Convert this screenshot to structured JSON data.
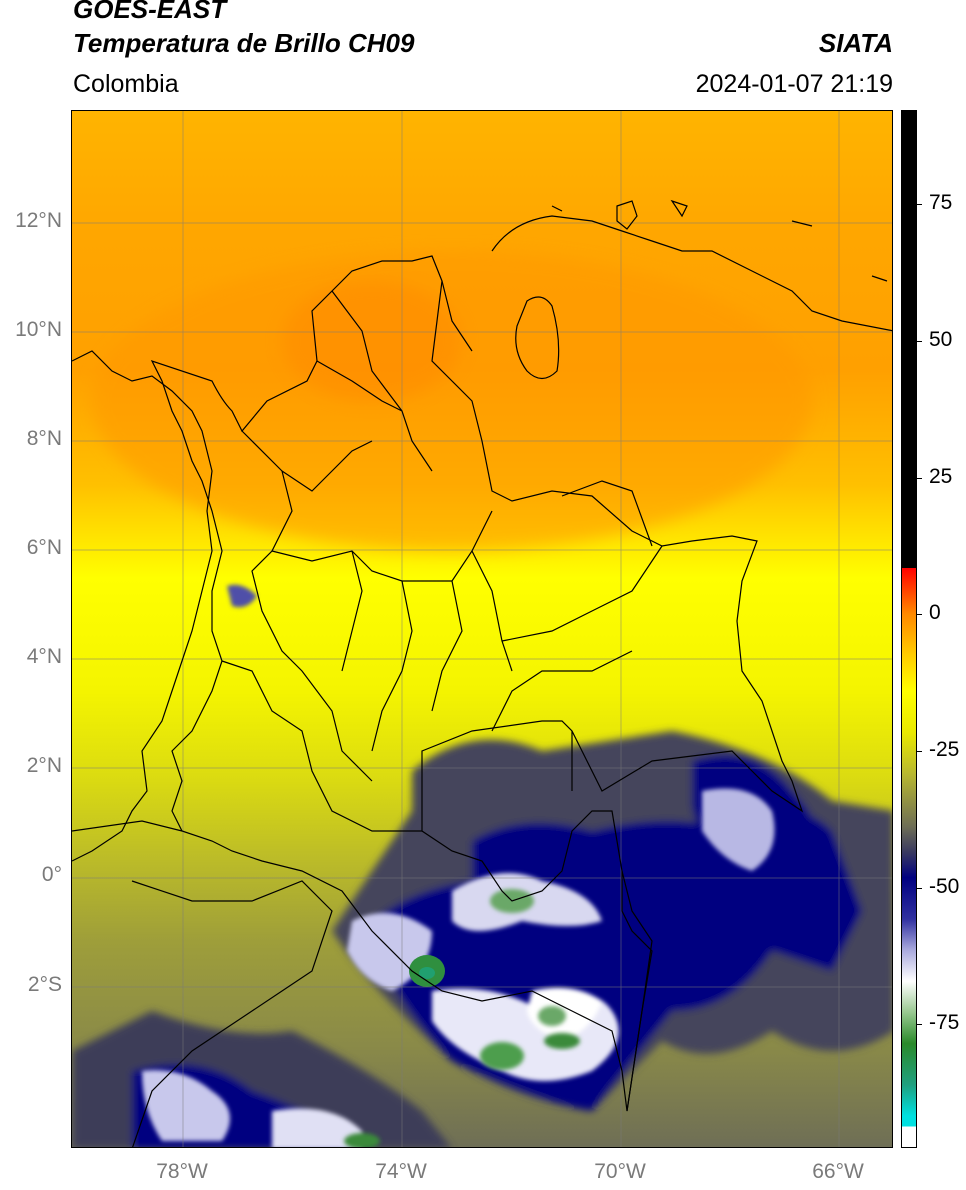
{
  "header": {
    "satellite": "GOES-EAST",
    "product": "Temperatura de Brillo CH09",
    "agency": "SIATA",
    "region": "Colombia",
    "timestamp": "2024-01-07 21:19"
  },
  "axes": {
    "lat_labels": [
      "12°N",
      "10°N",
      "8°N",
      "6°N",
      "4°N",
      "2°N",
      "0°",
      "2°S"
    ],
    "lon_labels": [
      "78°W",
      "74°W",
      "70°W",
      "66°W"
    ]
  },
  "colorbar": {
    "tick_labels": [
      "75",
      "50",
      "25",
      "0",
      "-25",
      "-50",
      "-75"
    ]
  },
  "colors": {
    "warm_orange": "#ffa500",
    "yellow": "#ffff00",
    "olive": "#9a9a3a",
    "dark_blue": "#000080",
    "green": "#2f8f3f",
    "border_black": "#000000"
  }
}
